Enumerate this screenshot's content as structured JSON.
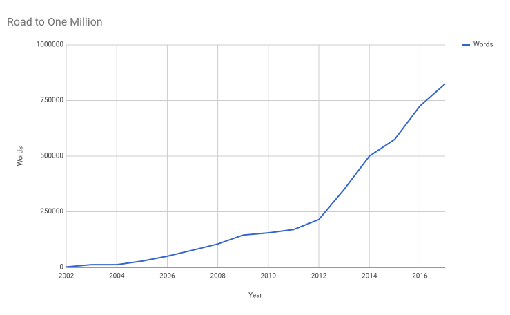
{
  "chart_data": {
    "type": "line",
    "title": "Road to One Million",
    "x_label": "Year",
    "y_label": "Words",
    "x": [
      2002,
      2003,
      2004,
      2005,
      2006,
      2007,
      2008,
      2009,
      2010,
      2011,
      2012,
      2013,
      2014,
      2015,
      2016,
      2017
    ],
    "series": [
      {
        "name": "Words",
        "color": "#3366cc",
        "values": [
          2000,
          12000,
          12000,
          28000,
          50000,
          77000,
          105000,
          145000,
          155000,
          170000,
          215000,
          350000,
          500000,
          575000,
          725000,
          825000
        ]
      }
    ],
    "xlim": [
      2002,
      2017
    ],
    "xticks": [
      2002,
      2004,
      2006,
      2008,
      2010,
      2012,
      2014,
      2016
    ],
    "ylim": [
      0,
      1000000
    ],
    "yticks": [
      0,
      250000,
      500000,
      750000,
      1000000
    ],
    "grid": true,
    "legend": "right"
  }
}
